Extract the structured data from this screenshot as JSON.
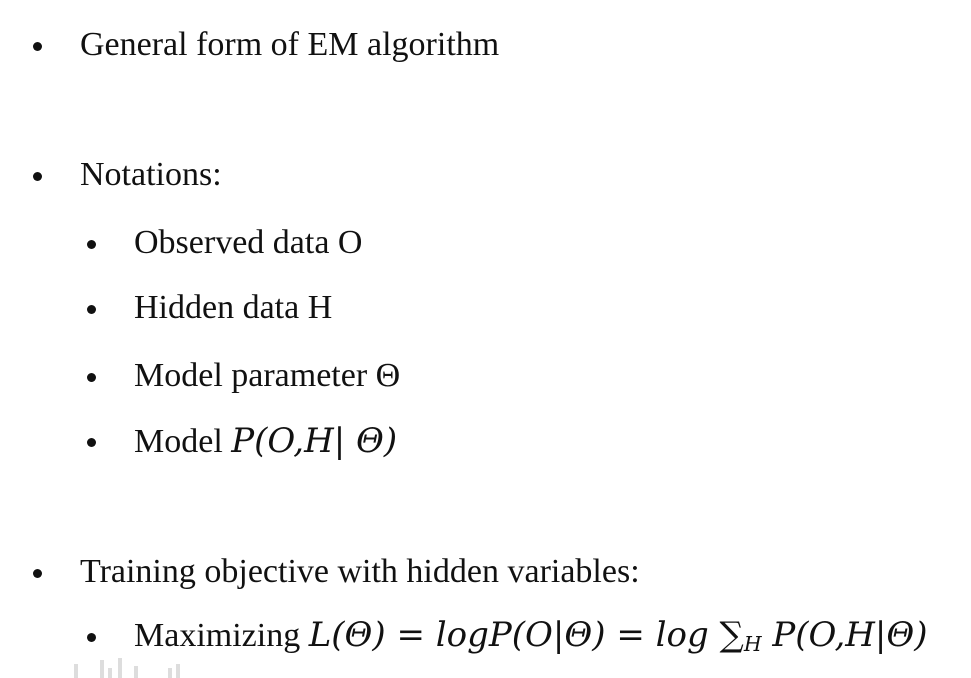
{
  "slide": {
    "items": [
      {
        "text": "General form of EM algorithm"
      },
      {
        "text": "Notations:"
      },
      {
        "text": "Observed data O"
      },
      {
        "text": "Hidden data H"
      },
      {
        "text": "Model parameter Θ"
      },
      {
        "prefix": "Model ",
        "math": "P(O,H| Θ)"
      },
      {
        "text": "Training objective with hidden variables:"
      },
      {
        "prefix": "Maximizing ",
        "math_a": "L(Θ) = logP(O|Θ) = log ",
        "sum": "∑",
        "sum_sub": "H",
        "math_b": " P(O,H|Θ)"
      }
    ]
  }
}
